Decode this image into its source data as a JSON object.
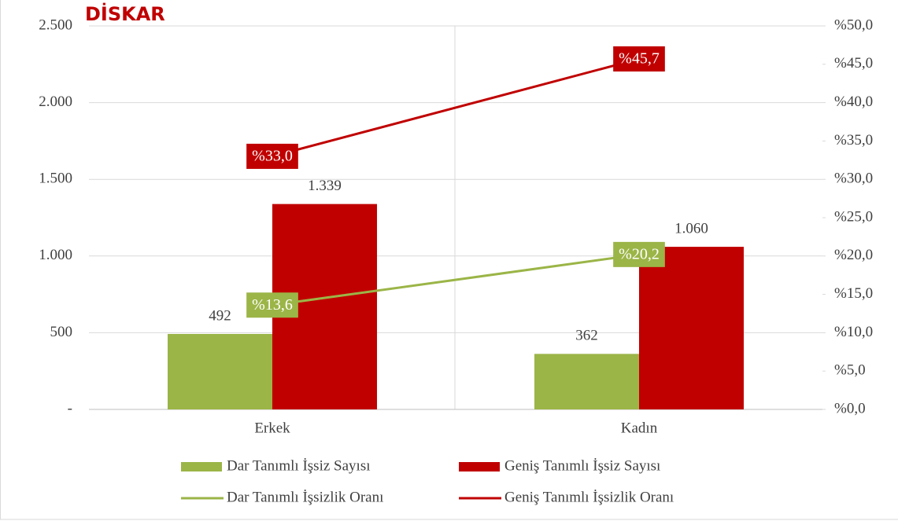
{
  "chart_data": {
    "type": "bar",
    "logo": "DİSKAR",
    "categories": [
      "Erkek",
      "Kadın"
    ],
    "series": [
      {
        "name": "Dar Tanımlı İşsiz Sayısı",
        "type": "bar",
        "color": "#9bb547",
        "values": [
          492,
          362
        ]
      },
      {
        "name": "Geniş Tanımlı İşsiz Sayısı",
        "type": "bar",
        "color": "#c00000",
        "values": [
          1339,
          1060
        ],
        "value_labels": [
          "1.339",
          "1.060"
        ]
      },
      {
        "name": "Dar Tanımlı İşsizlik Oranı",
        "type": "line",
        "axis": "y2",
        "color": "#9bb547",
        "values": [
          13.6,
          20.2
        ],
        "value_labels": [
          "%13,6",
          "%20,2"
        ]
      },
      {
        "name": "Geniş Tanımlı İşsizlik Oranı",
        "type": "line",
        "axis": "y2",
        "color": "#c00000",
        "values": [
          33.0,
          45.7
        ],
        "value_labels": [
          "%33,0",
          "%45,7"
        ]
      }
    ],
    "ylim": [
      0,
      2500
    ],
    "yticks": [
      {
        "value": 0,
        "label": "-"
      },
      500,
      {
        "value": 1000,
        "label": "1.000"
      },
      {
        "value": 1500,
        "label": "1.500"
      },
      {
        "value": 2000,
        "label": "2.000"
      },
      {
        "value": 2500,
        "label": "2.500"
      }
    ],
    "y2lim": [
      0,
      50
    ],
    "y2ticks": [
      {
        "value": 0,
        "label": "%0,0"
      },
      {
        "value": 5,
        "label": "%5,0"
      },
      {
        "value": 10,
        "label": "%10,0"
      },
      {
        "value": 15,
        "label": "%15,0"
      },
      {
        "value": 20,
        "label": "%20,0"
      },
      {
        "value": 25,
        "label": "%25,0"
      },
      {
        "value": 30,
        "label": "%30,0"
      },
      {
        "value": 35,
        "label": "%35,0"
      },
      {
        "value": 40,
        "label": "%40,0"
      },
      {
        "value": 45,
        "label": "%45,0"
      },
      {
        "value": 50,
        "label": "%50,0"
      }
    ],
    "grid": true,
    "legend": "bottom"
  }
}
